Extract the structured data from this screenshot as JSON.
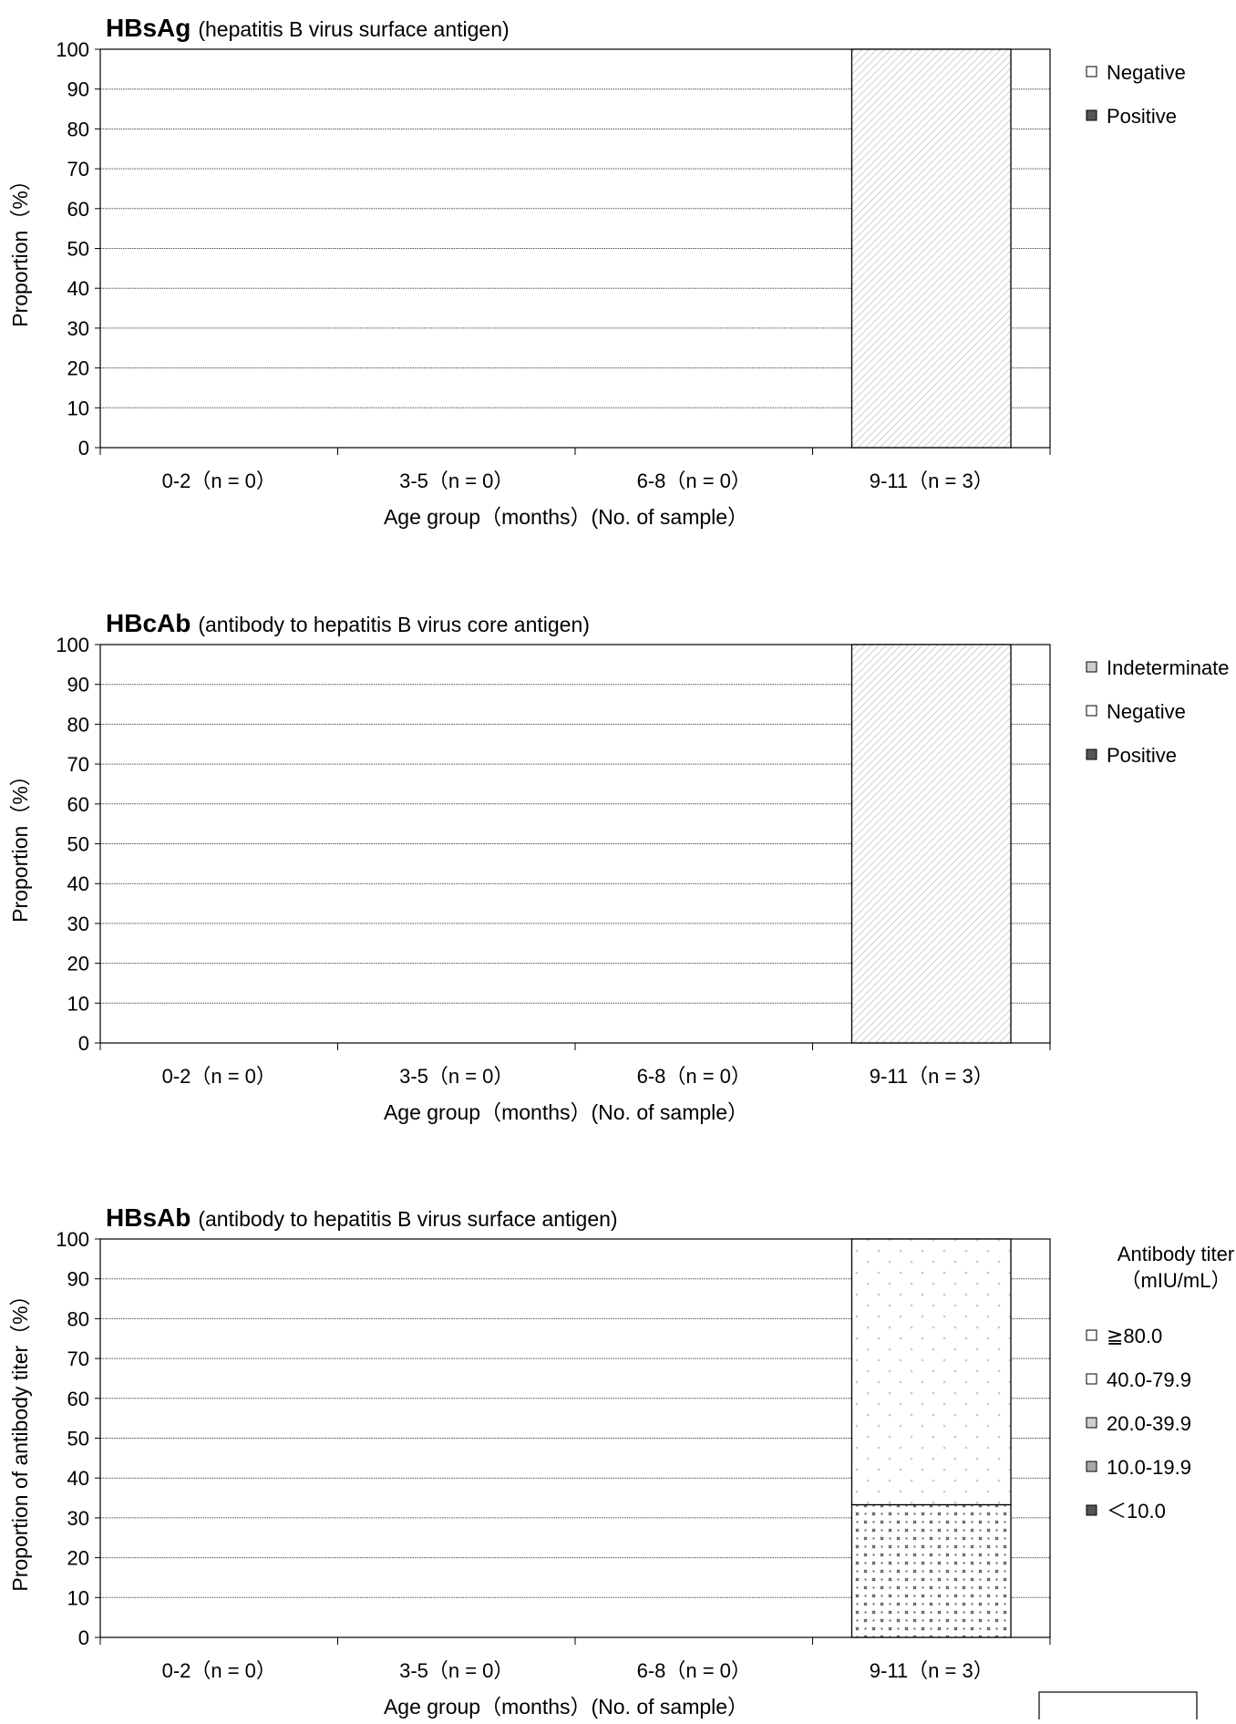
{
  "page_box": "",
  "chart_data": [
    {
      "type": "bar",
      "stacked": true,
      "title_bold": "HBsAg",
      "title": "(hepatitis B virus surface antigen)",
      "xlabel": "Age group（months）(No. of sample）",
      "ylabel": "Proportion（%）",
      "ylim": [
        0,
        100
      ],
      "yticks": [
        "0",
        "10",
        "20",
        "30",
        "40",
        "50",
        "60",
        "70",
        "80",
        "90",
        "100"
      ],
      "grid": true,
      "legend_position": "right",
      "categories": [
        "0-2（n = 0）",
        "3-5（n = 0）",
        "6-8（n = 0）",
        "9-11（n = 3）"
      ],
      "series": [
        {
          "name": "Positive",
          "values": [
            0,
            0,
            0,
            0
          ],
          "color": "#555555",
          "pattern": "solid"
        },
        {
          "name": "Negative",
          "values": [
            0,
            0,
            0,
            100
          ],
          "color": "#ffffff",
          "pattern": "diagonal"
        }
      ],
      "legend": [
        {
          "label": "Negative",
          "pattern": "white"
        },
        {
          "label": "Positive",
          "pattern": "dark"
        }
      ]
    },
    {
      "type": "bar",
      "stacked": true,
      "title_bold": "HBcAb",
      "title": "(antibody to hepatitis B virus core antigen)",
      "xlabel": "Age group（months）(No. of sample）",
      "ylabel": "Proportion（%）",
      "ylim": [
        0,
        100
      ],
      "yticks": [
        "0",
        "10",
        "20",
        "30",
        "40",
        "50",
        "60",
        "70",
        "80",
        "90",
        "100"
      ],
      "grid": true,
      "legend_position": "right",
      "categories": [
        "0-2（n = 0）",
        "3-5（n = 0）",
        "6-8（n = 0）",
        "9-11（n = 3）"
      ],
      "series": [
        {
          "name": "Positive",
          "values": [
            0,
            0,
            0,
            0
          ],
          "color": "#555555",
          "pattern": "solid"
        },
        {
          "name": "Negative",
          "values": [
            0,
            0,
            0,
            100
          ],
          "color": "#ffffff",
          "pattern": "diagonal"
        },
        {
          "name": "Indeterminate",
          "values": [
            0,
            0,
            0,
            0
          ],
          "color": "#bbbbbb",
          "pattern": "solid"
        }
      ],
      "legend": [
        {
          "label": "Indeterminate",
          "pattern": "light"
        },
        {
          "label": "Negative",
          "pattern": "white"
        },
        {
          "label": "Positive",
          "pattern": "dark"
        }
      ]
    },
    {
      "type": "bar",
      "stacked": true,
      "title_bold": "HBsAb",
      "title": "(antibody to hepatitis B virus surface antigen)",
      "xlabel": "Age group（months）(No. of sample）",
      "ylabel": "Proportion of antibody titer（%）",
      "ylim": [
        0,
        100
      ],
      "yticks": [
        "0",
        "10",
        "20",
        "30",
        "40",
        "50",
        "60",
        "70",
        "80",
        "90",
        "100"
      ],
      "grid": true,
      "legend_position": "right",
      "legend_title": [
        "Antibody titer",
        "（mIU/mL）"
      ],
      "categories": [
        "0-2（n = 0）",
        "3-5（n = 0）",
        "6-8（n = 0）",
        "9-11（n = 3）"
      ],
      "series": [
        {
          "name": "＜10.0",
          "values": [
            0,
            0,
            0,
            33.3
          ],
          "color": "#555555",
          "pattern": "cross"
        },
        {
          "name": "10.0-19.9",
          "values": [
            0,
            0,
            0,
            0
          ],
          "color": "#999999",
          "pattern": "solid"
        },
        {
          "name": "20.0-39.9",
          "values": [
            0,
            0,
            0,
            0
          ],
          "color": "#cccccc",
          "pattern": "solid"
        },
        {
          "name": "40.0-79.9",
          "values": [
            0,
            0,
            0,
            0
          ],
          "color": "#eeeeee",
          "pattern": "solid"
        },
        {
          "name": "≧80.0",
          "values": [
            0,
            0,
            0,
            66.7
          ],
          "color": "#ffffff",
          "pattern": "dots"
        }
      ],
      "legend": [
        {
          "label": "≧80.0",
          "pattern": "white"
        },
        {
          "label": "40.0-79.9",
          "pattern": "white"
        },
        {
          "label": "20.0-39.9",
          "pattern": "light"
        },
        {
          "label": "10.0-19.9",
          "pattern": "mid"
        },
        {
          "label": "＜10.0",
          "pattern": "dark"
        }
      ]
    }
  ]
}
